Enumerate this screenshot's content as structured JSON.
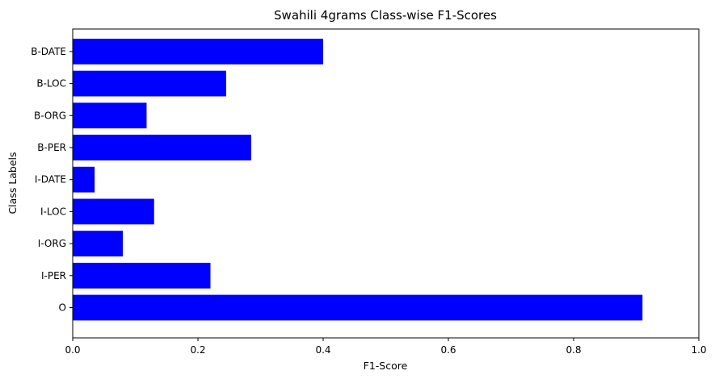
{
  "chart_data": {
    "type": "bar",
    "orientation": "horizontal",
    "title": "Swahili 4grams Class-wise F1-Scores",
    "xlabel": "F1-Score",
    "ylabel": "Class Labels",
    "categories": [
      "B-DATE",
      "B-LOC",
      "B-ORG",
      "B-PER",
      "I-DATE",
      "I-LOC",
      "I-ORG",
      "I-PER",
      "O"
    ],
    "values": [
      0.4,
      0.245,
      0.118,
      0.285,
      0.035,
      0.13,
      0.08,
      0.22,
      0.91
    ],
    "xlim": [
      0.0,
      1.0
    ],
    "xticks": [
      "0.0",
      "0.2",
      "0.4",
      "0.6",
      "0.8",
      "1.0"
    ],
    "bar_color": "#0000ff",
    "grid": false
  }
}
